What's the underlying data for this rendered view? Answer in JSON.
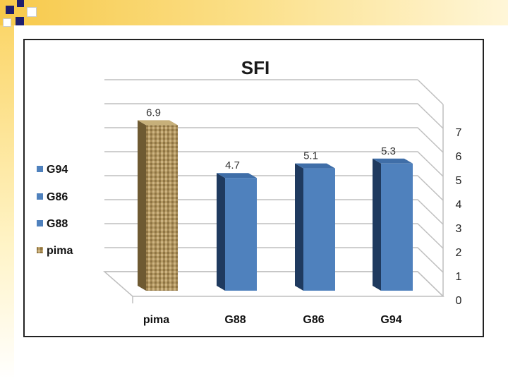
{
  "chart_data": {
    "type": "bar",
    "title": "SFI",
    "categories": [
      "pima",
      "G88",
      "G86",
      "G94"
    ],
    "values": [
      6.9,
      4.7,
      5.1,
      5.3
    ],
    "value_labels": [
      "6.9",
      "4.7",
      "5.1",
      "5.3"
    ],
    "ylim": [
      0,
      7
    ],
    "yticks": [
      "0",
      "1",
      "2",
      "3",
      "4",
      "5",
      "6",
      "7"
    ],
    "grid": true,
    "legend_position": "left",
    "legend": [
      "G94",
      "G86",
      "G88",
      "pima"
    ],
    "colors": {
      "blue": "#4f81bd",
      "blue_dark": "#1f3a5f",
      "pima": "#b59a63"
    }
  }
}
